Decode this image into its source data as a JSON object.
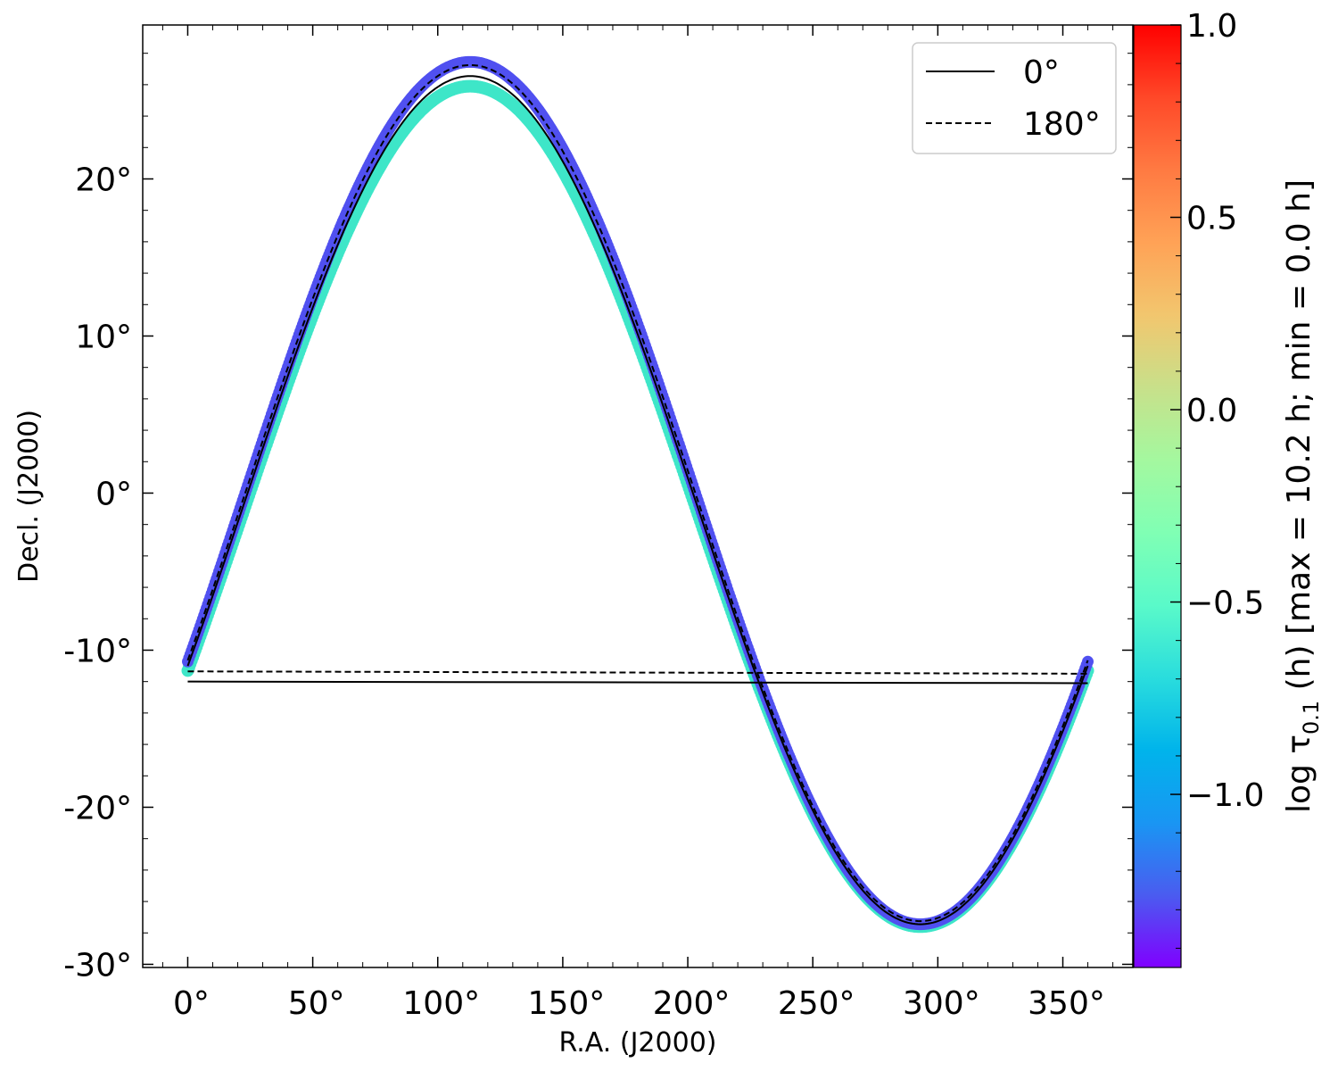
{
  "chart_data": {
    "type": "scatter",
    "xlabel": "R.A. (J2000)",
    "ylabel": "Decl. (J2000)",
    "xlim": [
      -18,
      378
    ],
    "ylim": [
      -30.2,
      29.8
    ],
    "xticks": [
      0,
      50,
      100,
      150,
      200,
      250,
      300,
      350
    ],
    "xtick_labels": [
      "0°",
      "50°",
      "100°",
      "150°",
      "200°",
      "250°",
      "300°",
      "350°"
    ],
    "yticks": [
      -30,
      -20,
      -10,
      0,
      10,
      20
    ],
    "ytick_labels": [
      "-30°",
      "-20°",
      "-10°",
      "0°",
      "10°",
      "20°"
    ],
    "grid": false,
    "legend_position": "top-right",
    "series": [
      {
        "name": "0°",
        "style": "solid",
        "color": "#000000",
        "amplitude": 27.0,
        "peak_ra": 113,
        "offset": -0.45,
        "closing_segment": [
          [
            0,
            -12.0
          ],
          [
            360,
            -12.1
          ]
        ]
      },
      {
        "name": "180°",
        "style": "dashed",
        "color": "#000000",
        "amplitude": 27.25,
        "peak_ra": 113,
        "offset": 0.0,
        "closing_segment": [
          [
            0,
            -11.35
          ],
          [
            360,
            -11.5
          ]
        ]
      }
    ],
    "scatter_band": {
      "upper_color": "#5050f0",
      "lower_color": "#3ee6c8",
      "upper_amplitude": 27.45,
      "lower_amplitude": 26.75,
      "lower_offset": -0.85
    },
    "colorbar": {
      "label_main": "log τ",
      "label_sub": "0.1",
      "label_rest": " (h) [max = 10.2 h; min = 0.0 h]",
      "range": [
        -1.45,
        1.0
      ],
      "ticks": [
        -1.0,
        -0.5,
        0.0,
        0.5,
        1.0
      ],
      "tick_labels": [
        "−1.0",
        "−0.5",
        "0.0",
        "0.5",
        "1.0"
      ],
      "colormap": "rainbow",
      "colors": [
        "#8000ff",
        "#4a5cf0",
        "#1996f3",
        "#00b4eb",
        "#2adddd",
        "#5afac9",
        "#80ffb4",
        "#a4f89f",
        "#c8e08a",
        "#f2c66e",
        "#ffa256",
        "#ff7a42",
        "#ff4828",
        "#ff0000"
      ]
    }
  }
}
